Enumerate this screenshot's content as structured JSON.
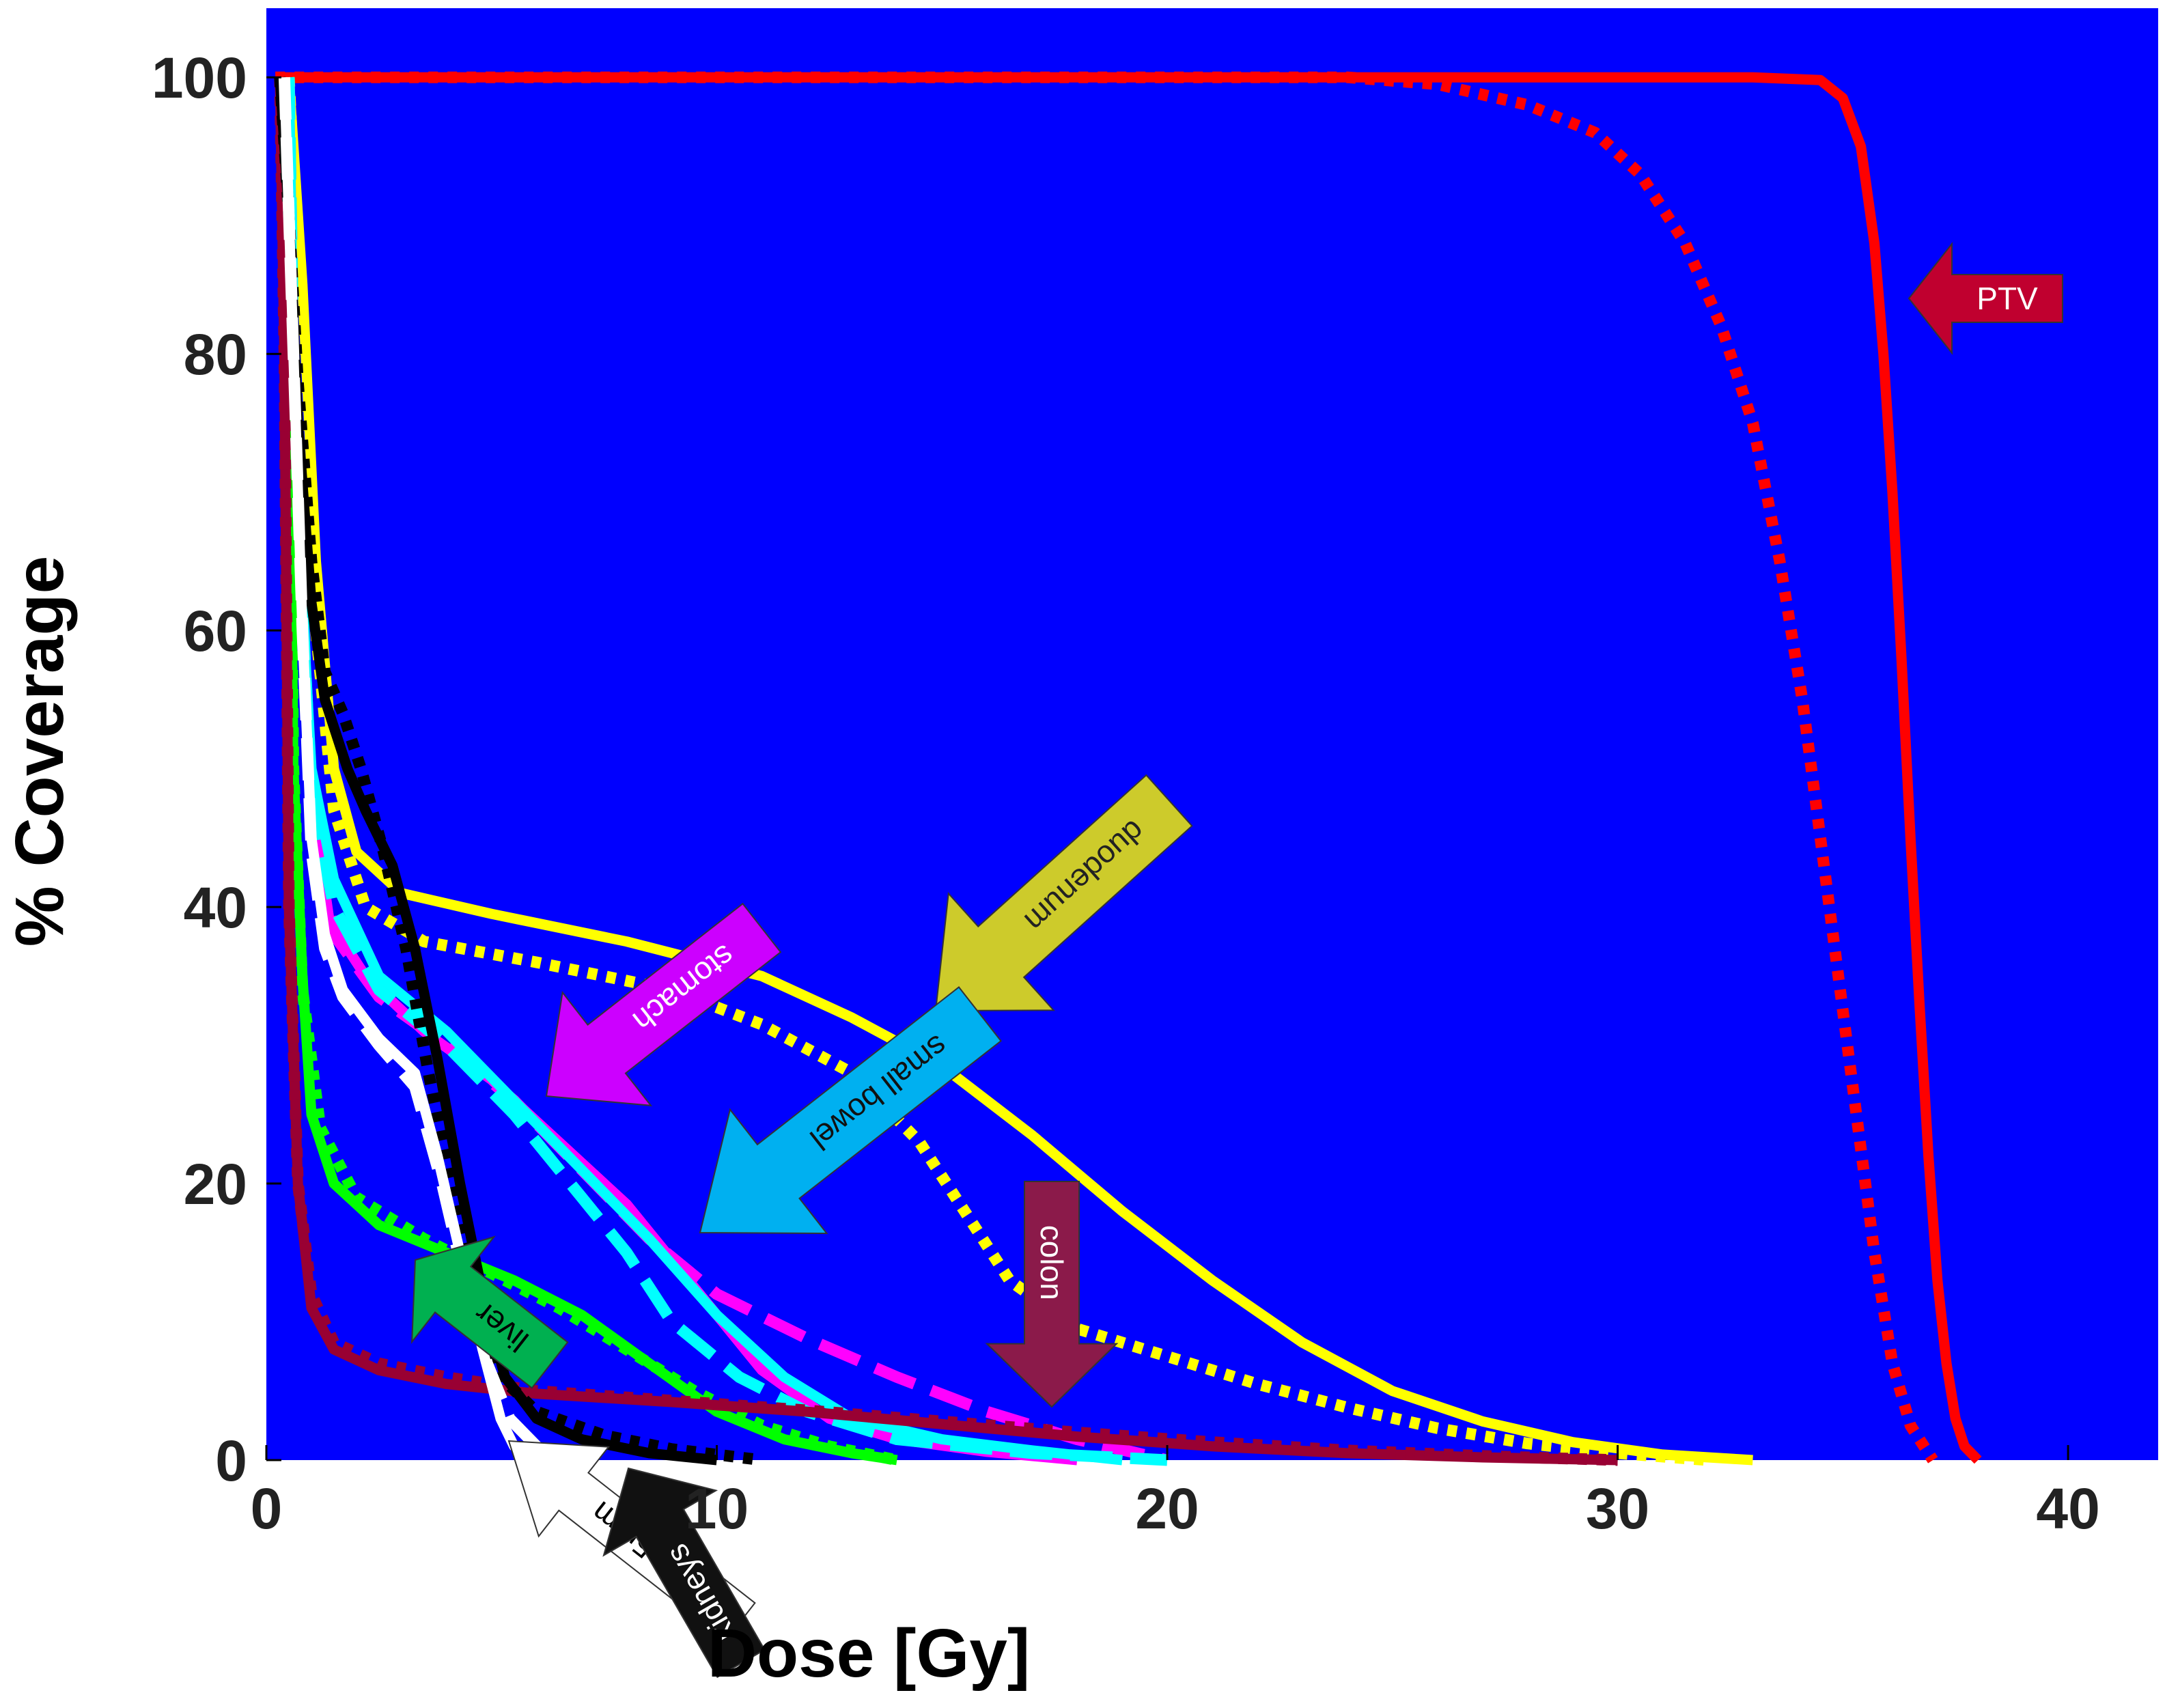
{
  "chart_data": {
    "type": "line",
    "title": "",
    "xlabel": "Dose [Gy]",
    "ylabel": "% Coverage",
    "xlim": [
      0,
      42
    ],
    "ylim": [
      0,
      105
    ],
    "xticks": [
      "0",
      "10",
      "20",
      "30",
      "40"
    ],
    "yticks": [
      "0",
      "20",
      "40",
      "60",
      "80",
      "100"
    ],
    "background": "#0000FF",
    "series": [
      {
        "name": "PTV",
        "color": "#FF0000",
        "dash": "solid",
        "points": [
          [
            0.2,
            100
          ],
          [
            20,
            100
          ],
          [
            33,
            100
          ],
          [
            34.5,
            99.8
          ],
          [
            35,
            98.5
          ],
          [
            35.4,
            95
          ],
          [
            35.7,
            88
          ],
          [
            35.9,
            80
          ],
          [
            36.1,
            70
          ],
          [
            36.3,
            58
          ],
          [
            36.5,
            45
          ],
          [
            36.7,
            33
          ],
          [
            36.9,
            22
          ],
          [
            37.1,
            13
          ],
          [
            37.3,
            7
          ],
          [
            37.5,
            3
          ],
          [
            37.7,
            1
          ],
          [
            38,
            0
          ]
        ]
      },
      {
        "name": "PTV",
        "color": "#FF0000",
        "dash": "dotted",
        "points": [
          [
            0.2,
            100
          ],
          [
            24,
            100
          ],
          [
            26,
            99.5
          ],
          [
            28,
            98
          ],
          [
            29.5,
            96
          ],
          [
            30.5,
            93
          ],
          [
            31.5,
            88
          ],
          [
            32.3,
            82
          ],
          [
            33,
            75
          ],
          [
            33.6,
            65
          ],
          [
            34.1,
            55
          ],
          [
            34.5,
            45
          ],
          [
            34.9,
            35
          ],
          [
            35.3,
            25
          ],
          [
            35.7,
            15
          ],
          [
            36.1,
            7
          ],
          [
            36.5,
            2.5
          ],
          [
            37,
            0
          ]
        ]
      },
      {
        "name": "duodenum",
        "color": "#FFFF00",
        "dash": "solid",
        "points": [
          [
            0.5,
            100
          ],
          [
            0.8,
            85
          ],
          [
            1.1,
            65
          ],
          [
            1.5,
            50
          ],
          [
            2,
            44
          ],
          [
            3,
            41
          ],
          [
            5,
            39.5
          ],
          [
            8,
            37.5
          ],
          [
            11,
            35
          ],
          [
            13,
            32
          ],
          [
            15,
            28.5
          ],
          [
            17,
            23.5
          ],
          [
            19,
            18
          ],
          [
            21,
            13
          ],
          [
            23,
            8.5
          ],
          [
            25,
            5
          ],
          [
            27,
            2.8
          ],
          [
            29,
            1.3
          ],
          [
            31,
            0.4
          ],
          [
            33,
            0
          ]
        ]
      },
      {
        "name": "duodenum",
        "color": "#FFFF00",
        "dash": "dotted",
        "points": [
          [
            0.5,
            100
          ],
          [
            0.8,
            80
          ],
          [
            1.1,
            60
          ],
          [
            1.5,
            47
          ],
          [
            2.2,
            40
          ],
          [
            3.5,
            37.5
          ],
          [
            6,
            36
          ],
          [
            9,
            34
          ],
          [
            11,
            31.5
          ],
          [
            13,
            28
          ],
          [
            14.5,
            23
          ],
          [
            15.5,
            18
          ],
          [
            16.5,
            13
          ],
          [
            18,
            9.5
          ],
          [
            20,
            7.5
          ],
          [
            22,
            5.5
          ],
          [
            24,
            3.8
          ],
          [
            26,
            2.3
          ],
          [
            28,
            1.2
          ],
          [
            30,
            0.5
          ],
          [
            32,
            0
          ]
        ]
      },
      {
        "name": "stomach",
        "color": "#FF00FF",
        "dash": "solid",
        "points": [
          [
            0.5,
            100
          ],
          [
            0.6,
            80
          ],
          [
            0.8,
            60
          ],
          [
            1,
            48
          ],
          [
            1.4,
            39
          ],
          [
            2.2,
            35
          ],
          [
            3.5,
            31
          ],
          [
            5,
            27.5
          ],
          [
            6.5,
            23
          ],
          [
            8,
            18.5
          ],
          [
            9.5,
            12.5
          ],
          [
            11,
            6.5
          ],
          [
            12.5,
            3
          ],
          [
            14,
            1.5
          ],
          [
            16,
            0.6
          ],
          [
            18,
            0
          ]
        ]
      },
      {
        "name": "stomach",
        "color": "#FF00FF",
        "dash": "dashed",
        "points": [
          [
            0.5,
            100
          ],
          [
            0.6,
            80
          ],
          [
            0.8,
            60
          ],
          [
            1,
            47
          ],
          [
            1.5,
            38
          ],
          [
            2.5,
            33.5
          ],
          [
            4,
            30
          ],
          [
            5.5,
            26
          ],
          [
            7,
            21
          ],
          [
            8.5,
            16
          ],
          [
            10,
            12
          ],
          [
            12,
            8.8
          ],
          [
            14,
            6
          ],
          [
            16,
            3.5
          ],
          [
            18,
            1.5
          ],
          [
            20,
            0
          ]
        ]
      },
      {
        "name": "small bowel",
        "color": "#00FFFF",
        "dash": "solid",
        "points": [
          [
            0.5,
            100
          ],
          [
            0.6,
            80
          ],
          [
            0.8,
            62
          ],
          [
            1,
            50
          ],
          [
            1.5,
            42
          ],
          [
            2.5,
            35
          ],
          [
            4,
            31
          ],
          [
            5.5,
            26
          ],
          [
            7,
            21
          ],
          [
            8.5,
            16
          ],
          [
            10,
            10.5
          ],
          [
            11.5,
            6
          ],
          [
            13,
            3
          ],
          [
            15,
            1.5
          ],
          [
            17,
            0.7
          ],
          [
            19,
            0
          ]
        ]
      },
      {
        "name": "small bowel",
        "color": "#00FFFF",
        "dash": "dashed",
        "points": [
          [
            0.5,
            100
          ],
          [
            0.6,
            80
          ],
          [
            0.8,
            62
          ],
          [
            1,
            48
          ],
          [
            1.5,
            40
          ],
          [
            2.5,
            34
          ],
          [
            4,
            30
          ],
          [
            5.5,
            25
          ],
          [
            7,
            19
          ],
          [
            8,
            15
          ],
          [
            9,
            10
          ],
          [
            10.5,
            6
          ],
          [
            12,
            3.5
          ],
          [
            14,
            1.5
          ],
          [
            17,
            0.5
          ],
          [
            20,
            0
          ]
        ]
      },
      {
        "name": "liver",
        "color": "#00FF00",
        "dash": "solid",
        "points": [
          [
            0.4,
            100
          ],
          [
            0.5,
            80
          ],
          [
            0.6,
            50
          ],
          [
            0.8,
            35
          ],
          [
            1,
            25
          ],
          [
            1.5,
            20
          ],
          [
            2.5,
            17
          ],
          [
            4,
            15
          ],
          [
            5.5,
            13
          ],
          [
            7,
            10.5
          ],
          [
            8.5,
            7
          ],
          [
            10,
            3.5
          ],
          [
            11.5,
            1.5
          ],
          [
            13,
            0.5
          ],
          [
            14,
            0
          ]
        ]
      },
      {
        "name": "liver",
        "color": "#00FF00",
        "dash": "dotted",
        "points": [
          [
            0.4,
            100
          ],
          [
            0.5,
            80
          ],
          [
            0.6,
            50
          ],
          [
            0.8,
            34
          ],
          [
            1.2,
            24
          ],
          [
            2,
            19
          ],
          [
            3.5,
            16
          ],
          [
            5,
            13.5
          ],
          [
            6.5,
            11
          ],
          [
            8,
            8
          ],
          [
            9.5,
            5
          ],
          [
            11,
            2.5
          ],
          [
            12.5,
            1
          ],
          [
            14,
            0
          ]
        ]
      },
      {
        "name": "colon",
        "color": "#990033",
        "dash": "solid",
        "points": [
          [
            0.3,
            100
          ],
          [
            0.4,
            80
          ],
          [
            0.5,
            40
          ],
          [
            0.7,
            20
          ],
          [
            1,
            11
          ],
          [
            1.5,
            8
          ],
          [
            2.5,
            6.5
          ],
          [
            4,
            5.5
          ],
          [
            6,
            4.8
          ],
          [
            9,
            4.2
          ],
          [
            12,
            3.5
          ],
          [
            15,
            2.6
          ],
          [
            18,
            1.7
          ],
          [
            21,
            1
          ],
          [
            24,
            0.5
          ],
          [
            27,
            0.2
          ],
          [
            30,
            0
          ]
        ]
      },
      {
        "name": "colon",
        "color": "#990033",
        "dash": "dotted",
        "points": [
          [
            0.3,
            100
          ],
          [
            0.4,
            80
          ],
          [
            0.5,
            40
          ],
          [
            0.7,
            20
          ],
          [
            1,
            12
          ],
          [
            1.5,
            8.5
          ],
          [
            2.5,
            7
          ],
          [
            4,
            6
          ],
          [
            6,
            5
          ],
          [
            9,
            4.3
          ],
          [
            12,
            3.6
          ],
          [
            15,
            2.8
          ],
          [
            18,
            2
          ],
          [
            21,
            1.3
          ],
          [
            24,
            0.7
          ],
          [
            27,
            0.3
          ],
          [
            30,
            0
          ]
        ]
      },
      {
        "name": "kidneys",
        "color": "#000000",
        "dash": "solid",
        "points": [
          [
            0.3,
            100
          ],
          [
            0.5,
            90
          ],
          [
            0.7,
            75
          ],
          [
            1,
            62
          ],
          [
            1.3,
            55
          ],
          [
            1.8,
            50
          ],
          [
            2.2,
            47
          ],
          [
            2.8,
            43
          ],
          [
            3.3,
            37
          ],
          [
            3.8,
            29
          ],
          [
            4.3,
            20
          ],
          [
            4.8,
            12
          ],
          [
            5.3,
            6
          ],
          [
            6,
            3
          ],
          [
            7,
            1.5
          ],
          [
            8.5,
            0.5
          ],
          [
            10,
            0
          ]
        ]
      },
      {
        "name": "kidneys",
        "color": "#000000",
        "dash": "dotted",
        "points": [
          [
            0.3,
            100
          ],
          [
            0.5,
            90
          ],
          [
            0.7,
            78
          ],
          [
            1,
            65
          ],
          [
            1.3,
            57
          ],
          [
            1.7,
            54
          ],
          [
            2.1,
            50
          ],
          [
            2.6,
            44
          ],
          [
            3.1,
            37
          ],
          [
            3.6,
            28
          ],
          [
            4.1,
            20
          ],
          [
            4.6,
            12
          ],
          [
            5.2,
            6
          ],
          [
            6,
            3.5
          ],
          [
            7.5,
            1.8
          ],
          [
            9,
            0.8
          ],
          [
            11,
            0
          ]
        ]
      },
      {
        "name": "Cord+5mm",
        "color": "#FFFFFF",
        "dash": "solid",
        "points": [
          [
            0.4,
            100
          ],
          [
            0.6,
            80
          ],
          [
            0.8,
            60
          ],
          [
            1,
            45
          ],
          [
            1.3,
            38
          ],
          [
            1.7,
            34
          ],
          [
            2.5,
            30.5
          ],
          [
            3.3,
            28
          ],
          [
            3.8,
            22
          ],
          [
            4.3,
            15
          ],
          [
            4.8,
            8
          ],
          [
            5.2,
            3
          ],
          [
            5.5,
            1
          ],
          [
            6,
            0
          ]
        ]
      },
      {
        "name": "Cord+5mm",
        "color": "#FFFFFF",
        "dash": "dashed",
        "points": [
          [
            0.4,
            100
          ],
          [
            0.6,
            80
          ],
          [
            0.8,
            60
          ],
          [
            1,
            44
          ],
          [
            1.3,
            37
          ],
          [
            1.7,
            33.5
          ],
          [
            2.5,
            30
          ],
          [
            3.3,
            27
          ],
          [
            3.9,
            20
          ],
          [
            4.4,
            13
          ],
          [
            4.9,
            7
          ],
          [
            5.4,
            3
          ],
          [
            6,
            1
          ],
          [
            6.5,
            0
          ]
        ]
      }
    ],
    "annotations": [
      {
        "text": "PTV",
        "fill": "#C0002F",
        "text_color": "#FFFFFF"
      },
      {
        "text": "duodenum",
        "fill": "#CDCB2B",
        "text_color": "#222222"
      },
      {
        "text": "stomach",
        "fill": "#CC00FF",
        "text_color": "#FFFFFF"
      },
      {
        "text": "small bowel",
        "fill": "#00B0F0",
        "text_color": "#111111"
      },
      {
        "text": "colon",
        "fill": "#8B1A4A",
        "text_color": "#FFFFFF"
      },
      {
        "text": "liver",
        "fill": "#00B050",
        "text_color": "#000000"
      },
      {
        "text": "Cord+5mm",
        "fill": "#FFFFFF",
        "text_color": "#000000"
      },
      {
        "text": "kidneys",
        "fill": "#111111",
        "text_color": "#FFFFFF"
      }
    ]
  }
}
